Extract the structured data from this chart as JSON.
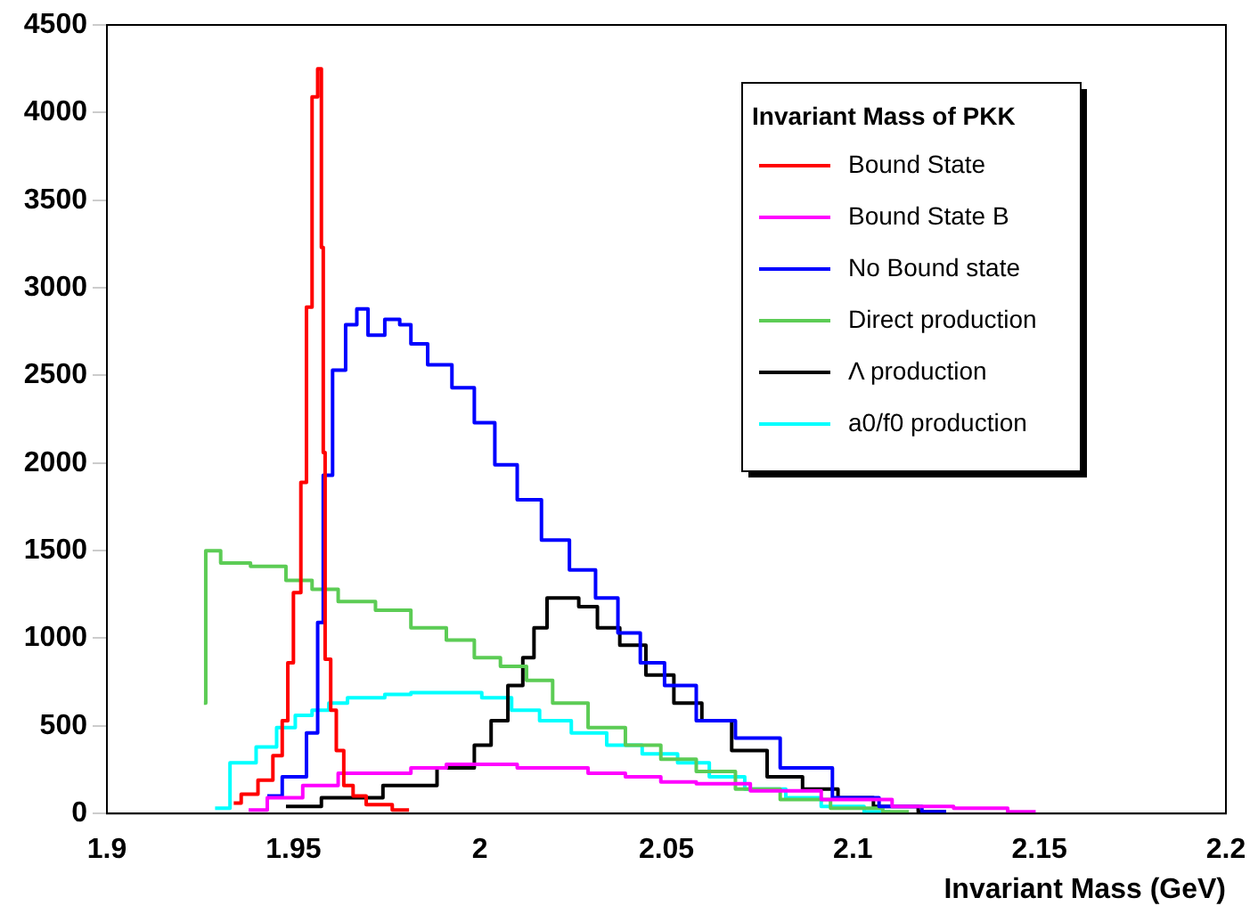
{
  "chart_data": {
    "type": "step",
    "xlabel": "Invariant Mass (GeV)",
    "legend_title": "Invariant Mass of PKK",
    "legend": "top right",
    "grid": false,
    "xlim": [
      1.9,
      2.2
    ],
    "xticks": [
      1.9,
      1.95,
      2,
      2.05,
      2.1,
      2.15,
      2.2
    ],
    "ylim": [
      0,
      4500
    ],
    "yticks": [
      0,
      500,
      1000,
      1500,
      2000,
      2500,
      3000,
      3500,
      4000,
      4500
    ],
    "series": [
      {
        "name": "Bound State",
        "color": "#ff0000",
        "x": [
          1.934,
          1.938,
          1.943,
          1.946,
          1.948,
          1.949,
          1.951,
          1.953,
          1.954,
          1.956,
          1.957,
          1.958,
          1.958,
          1.959,
          1.961,
          1.962,
          1.965,
          1.967,
          1.972,
          1.981
        ],
        "values": [
          60,
          110,
          190,
          330,
          530,
          860,
          1260,
          1890,
          2890,
          4090,
          4250,
          3230,
          2060,
          880,
          590,
          360,
          160,
          100,
          50,
          20
        ]
      },
      {
        "name": "Bound State B",
        "color": "#ff00ff",
        "x": [
          1.938,
          1.948,
          1.957,
          1.967,
          1.977,
          1.986,
          1.996,
          2.005,
          2.015,
          2.024,
          2.034,
          2.044,
          2.053,
          2.063,
          2.082,
          2.101,
          2.12,
          2.134,
          2.149
        ],
        "values": [
          20,
          90,
          160,
          230,
          230,
          260,
          280,
          280,
          260,
          260,
          230,
          210,
          180,
          170,
          130,
          80,
          40,
          30,
          10
        ]
      },
      {
        "name": "No Bound state",
        "color": "#0000ff",
        "x": [
          1.943,
          1.951,
          1.956,
          1.957,
          1.959,
          1.962,
          1.966,
          1.968,
          1.972,
          1.977,
          1.98,
          1.983,
          1.989,
          1.996,
          2.001,
          2.007,
          2.013,
          2.02,
          2.028,
          2.034,
          2.04,
          2.046,
          2.053,
          2.063,
          2.074,
          2.087,
          2.102,
          2.112,
          2.125
        ],
        "values": [
          100,
          210,
          460,
          1090,
          1930,
          2530,
          2790,
          2880,
          2730,
          2820,
          2790,
          2680,
          2560,
          2430,
          2230,
          1990,
          1790,
          1560,
          1390,
          1230,
          1030,
          860,
          730,
          530,
          430,
          260,
          90,
          40,
          10
        ]
      },
      {
        "name": "Direct production",
        "color": "#5ccc55",
        "x": [
          1.926,
          1.927,
          1.934,
          1.943,
          1.953,
          1.957,
          1.967,
          1.977,
          1.986,
          1.996,
          2.001,
          2.01,
          2.015,
          2.024,
          2.034,
          2.044,
          2.053,
          2.063,
          2.074,
          2.087,
          2.101,
          2.115
        ],
        "values": [
          630,
          1500,
          1430,
          1410,
          1330,
          1280,
          1210,
          1160,
          1060,
          990,
          890,
          840,
          760,
          630,
          490,
          390,
          310,
          240,
          140,
          80,
          30,
          10
        ]
      },
      {
        "name": "Λ production",
        "color": "#000000",
        "x": [
          1.948,
          1.967,
          1.981,
          1.996,
          2.001,
          2.005,
          2.01,
          2.013,
          2.016,
          2.02,
          2.024,
          2.029,
          2.034,
          2.041,
          2.048,
          2.056,
          2.063,
          2.072,
          2.082,
          2.091,
          2.101,
          2.11,
          2.125
        ],
        "values": [
          40,
          90,
          160,
          260,
          390,
          530,
          730,
          890,
          1060,
          1230,
          1230,
          1180,
          1060,
          960,
          790,
          630,
          530,
          360,
          210,
          140,
          90,
          40,
          10
        ]
      },
      {
        "name": "a0/f0 production",
        "color": "#00ffff",
        "x": [
          1.929,
          1.937,
          1.943,
          1.948,
          1.953,
          1.957,
          1.962,
          1.967,
          1.972,
          1.977,
          1.986,
          1.996,
          2.005,
          2.012,
          2.02,
          2.029,
          2.039,
          2.048,
          2.058,
          2.065,
          2.077,
          2.087,
          2.096,
          2.11
        ],
        "values": [
          30,
          290,
          380,
          490,
          560,
          590,
          630,
          660,
          660,
          680,
          690,
          690,
          660,
          590,
          530,
          460,
          390,
          340,
          290,
          210,
          140,
          90,
          40,
          10
        ]
      }
    ]
  }
}
